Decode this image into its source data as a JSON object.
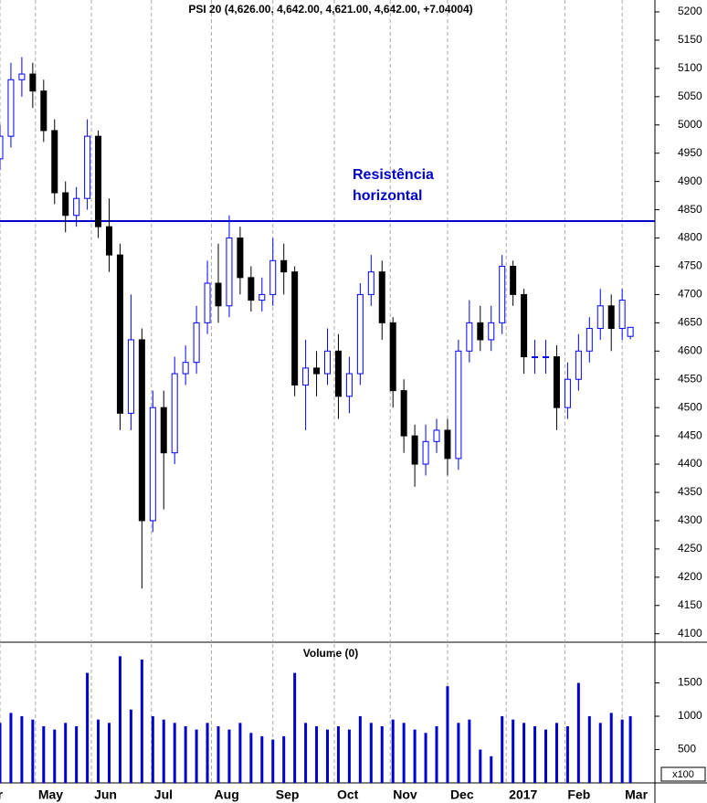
{
  "chart_data": [
    {
      "type": "candlestick",
      "title": "PSI 20 (4,626.00, 4,642.00, 4,621.00, 4,642.00, +7.04004)",
      "x": [
        0,
        4,
        8,
        12,
        16,
        20,
        24,
        28,
        32,
        36,
        40,
        44,
        48,
        52,
        56,
        60,
        64,
        68,
        72,
        76,
        80,
        84,
        88,
        92,
        96,
        100,
        104,
        108,
        112,
        116,
        120,
        124,
        128,
        132,
        136,
        140,
        144,
        148,
        152,
        156,
        160,
        164,
        168,
        172,
        176,
        180,
        184,
        188,
        192,
        196,
        200,
        204,
        208,
        212,
        216,
        220,
        224,
        228,
        231
      ],
      "open": [
        4940,
        4980,
        5080,
        5090,
        5060,
        4990,
        4880,
        4840,
        4870,
        4980,
        4820,
        4770,
        4490,
        4620,
        4300,
        4500,
        4420,
        4560,
        4580,
        4650,
        4720,
        4680,
        4800,
        4730,
        4690,
        4700,
        4760,
        4740,
        4540,
        4570,
        4560,
        4600,
        4520,
        4560,
        4700,
        4740,
        4650,
        4530,
        4450,
        4400,
        4440,
        4460,
        4410,
        4600,
        4650,
        4620,
        4650,
        4750,
        4700,
        4590,
        4590,
        4590,
        4500,
        4550,
        4600,
        4640,
        4680,
        4640,
        4626
      ],
      "high": [
        5000,
        5110,
        5120,
        5110,
        5080,
        5010,
        4900,
        4890,
        5010,
        4990,
        4870,
        4790,
        4700,
        4640,
        4530,
        4530,
        4590,
        4610,
        4680,
        4760,
        4790,
        4840,
        4820,
        4750,
        4730,
        4800,
        4790,
        4750,
        4620,
        4600,
        4640,
        4630,
        4590,
        4720,
        4770,
        4760,
        4660,
        4550,
        4470,
        4470,
        4480,
        4480,
        4620,
        4690,
        4680,
        4680,
        4770,
        4760,
        4710,
        4620,
        4620,
        4610,
        4580,
        4630,
        4660,
        4710,
        4700,
        4710,
        4642
      ],
      "low": [
        4920,
        4960,
        5050,
        5030,
        4970,
        4860,
        4810,
        4820,
        4850,
        4800,
        4740,
        4460,
        4460,
        4180,
        4280,
        4320,
        4400,
        4540,
        4560,
        4630,
        4650,
        4660,
        4700,
        4670,
        4670,
        4680,
        4700,
        4520,
        4460,
        4520,
        4540,
        4480,
        4490,
        4540,
        4680,
        4620,
        4500,
        4420,
        4360,
        4380,
        4420,
        4380,
        4390,
        4580,
        4600,
        4600,
        4630,
        4680,
        4560,
        4560,
        4560,
        4460,
        4480,
        4530,
        4580,
        4620,
        4600,
        4620,
        4621
      ],
      "close": [
        4980,
        5080,
        5090,
        5060,
        4990,
        4880,
        4840,
        4870,
        4980,
        4820,
        4770,
        4490,
        4620,
        4300,
        4500,
        4420,
        4560,
        4580,
        4650,
        4720,
        4680,
        4800,
        4730,
        4690,
        4700,
        4760,
        4740,
        4540,
        4570,
        4560,
        4600,
        4520,
        4560,
        4700,
        4740,
        4650,
        4530,
        4450,
        4400,
        4440,
        4460,
        4410,
        4600,
        4650,
        4620,
        4650,
        4750,
        4700,
        4590,
        4590,
        4590,
        4500,
        4550,
        4600,
        4640,
        4680,
        4640,
        4690,
        4642
      ],
      "up_color": "#0000ff",
      "down_color": "#000000",
      "xlim": [
        0,
        240
      ],
      "ylim": [
        4085,
        5221
      ],
      "yticks": [
        4100,
        4150,
        4200,
        4250,
        4300,
        4350,
        4400,
        4450,
        4500,
        4550,
        4600,
        4650,
        4700,
        4750,
        4800,
        4850,
        4900,
        4950,
        5000,
        5050,
        5100,
        5150,
        5200
      ],
      "reference_line": {
        "value": 4830,
        "color": "#0000cc",
        "label": [
          "Resistência",
          "horizontal"
        ]
      }
    },
    {
      "type": "bar",
      "title": "Volume (0)",
      "x": [
        0,
        4,
        8,
        12,
        16,
        20,
        24,
        28,
        32,
        36,
        40,
        44,
        48,
        52,
        56,
        60,
        64,
        68,
        72,
        76,
        80,
        84,
        88,
        92,
        96,
        100,
        104,
        108,
        112,
        116,
        120,
        124,
        128,
        132,
        136,
        140,
        144,
        148,
        152,
        156,
        160,
        164,
        168,
        172,
        176,
        180,
        184,
        188,
        192,
        196,
        200,
        204,
        208,
        212,
        216,
        220,
        224,
        228,
        231
      ],
      "values": [
        900,
        1050,
        1000,
        950,
        850,
        800,
        900,
        850,
        1650,
        950,
        900,
        1900,
        1100,
        1850,
        1000,
        950,
        900,
        850,
        800,
        900,
        850,
        800,
        900,
        750,
        700,
        650,
        700,
        1650,
        900,
        850,
        800,
        850,
        800,
        1000,
        900,
        850,
        950,
        900,
        800,
        750,
        850,
        1450,
        900,
        950,
        500,
        400,
        1000,
        950,
        900,
        850,
        800,
        900,
        850,
        1500,
        1000,
        900,
        1050,
        950,
        1000
      ],
      "color": "#0000cc",
      "xlim": [
        0,
        240
      ],
      "ylim": [
        0,
        2083
      ],
      "yticks": [
        500,
        1000,
        1500
      ],
      "scale_label": "x100",
      "xticks": [
        {
          "value": 0,
          "label": "r"
        },
        {
          "value": 13,
          "label": "May"
        },
        {
          "value": 33.5,
          "label": "Jun"
        },
        {
          "value": 55.5,
          "label": "Jul"
        },
        {
          "value": 77.5,
          "label": "Aug"
        },
        {
          "value": 100,
          "label": "Sep"
        },
        {
          "value": 122.5,
          "label": "Oct"
        },
        {
          "value": 143,
          "label": "Nov"
        },
        {
          "value": 164,
          "label": "Dec"
        },
        {
          "value": 185.5,
          "label": "2017"
        },
        {
          "value": 207,
          "label": "Feb"
        },
        {
          "value": 228,
          "label": "Mar"
        }
      ]
    }
  ]
}
